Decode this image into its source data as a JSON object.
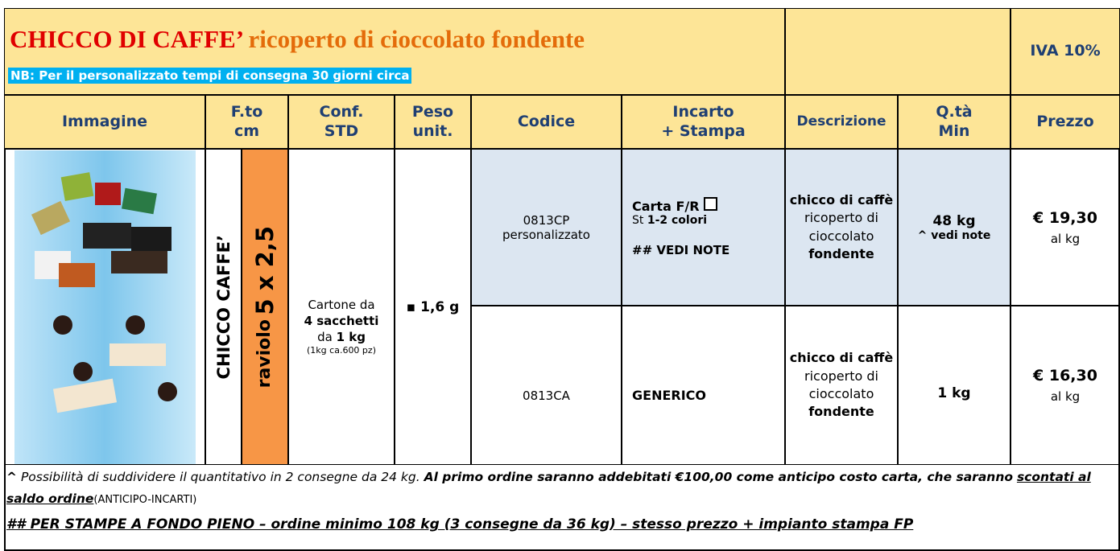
{
  "header": {
    "title": "CHICCO DI CAFFE’",
    "subtitle": "ricoperto di cioccolato fondente",
    "note": "NB: Per il personalizzato tempi di consegna 30 giorni circa",
    "vat": "IVA 10%"
  },
  "columns": [
    "Immagine",
    "F.to\ncm",
    "Conf.\nSTD",
    "Peso\nunit.",
    "Codice",
    "Incarto\n+ Stampa",
    "Descrizione",
    "Q.tà\nMin",
    "Prezzo"
  ],
  "product": {
    "name": "CHICCO CAFFE’",
    "format_label": "raviolo",
    "format_size": "5 x 2,5",
    "packaging": [
      "Cartone da",
      "4 sacchetti",
      "da",
      "1 kg",
      "(1kg ca.600 pz)"
    ],
    "weight": "1,6 g"
  },
  "rows": [
    {
      "code": "0813CP",
      "code_note": "personalizzato",
      "wrapping": [
        "Carta F/R",
        "St",
        "1-2 colori",
        "## VEDI NOTE"
      ],
      "description": [
        "chicco di caffè",
        "ricoperto di cioccolato",
        "fondente"
      ],
      "min_qty": "48 kg",
      "min_qty_note": "^ vedi note",
      "price": "€ 19,30",
      "price_unit": "al kg"
    },
    {
      "code": "0813CA",
      "wrapping": [
        "GENERICO"
      ],
      "description": [
        "chicco di caffè",
        "ricoperto di cioccolato",
        "fondente"
      ],
      "min_qty": "1 kg",
      "price": "€ 16,30",
      "price_unit": "al kg"
    }
  ],
  "notes": {
    "line1": [
      "^",
      "Possibilità di suddividere il quantitativo in 2 consegne da 24 kg.",
      "Al primo ordine saranno addebitati €100,00 come anticipo costo carta, che saranno",
      "scontati al saldo ordine",
      "(ANTICIPO-INCARTI)"
    ],
    "line2": "## PER STAMPE A FONDO PIENO – ordine minimo 108 kg (3 consegne da 36 kg) – stesso prezzo + impianto stampa FP"
  }
}
